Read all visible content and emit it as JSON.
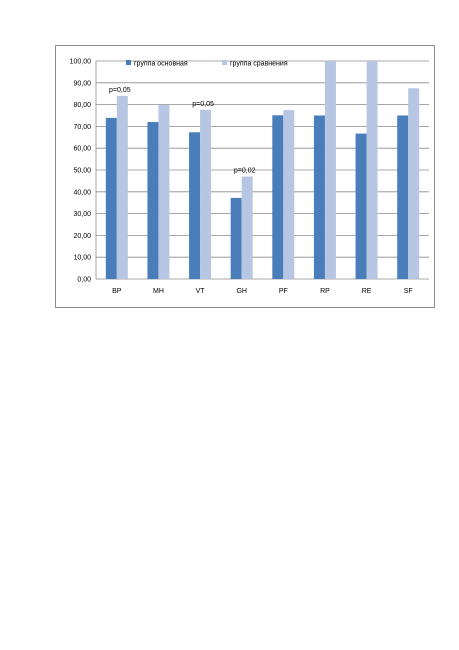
{
  "chart_data": {
    "type": "bar",
    "categories": [
      "BP",
      "MH",
      "VT",
      "GH",
      "PF",
      "RP",
      "RE",
      "SF"
    ],
    "series": [
      {
        "name": "группа основная",
        "color": "#4a7ebb",
        "values": [
          73.9,
          72.0,
          67.3,
          37.2,
          75.1,
          75.0,
          66.7,
          75.0
        ]
      },
      {
        "name": "группа сравнения",
        "color": "#b7c6e2",
        "values": [
          84.0,
          79.8,
          77.6,
          47.0,
          77.5,
          100.0,
          100.0,
          87.5
        ]
      }
    ],
    "yticks": [
      "0,00",
      "10,00",
      "20,00",
      "30,00",
      "40,00",
      "50,00",
      "60,00",
      "70,00",
      "80,00",
      "90,00",
      "100,00"
    ],
    "ylim": [
      0,
      100
    ],
    "grid": true,
    "legend": "top",
    "annotations": [
      {
        "category": "BP",
        "text": "p=0,05"
      },
      {
        "category": "VT",
        "text": "p=0,05"
      },
      {
        "category": "GH",
        "text": "p=0,02"
      }
    ],
    "title": "",
    "xlabel": "",
    "ylabel": ""
  }
}
